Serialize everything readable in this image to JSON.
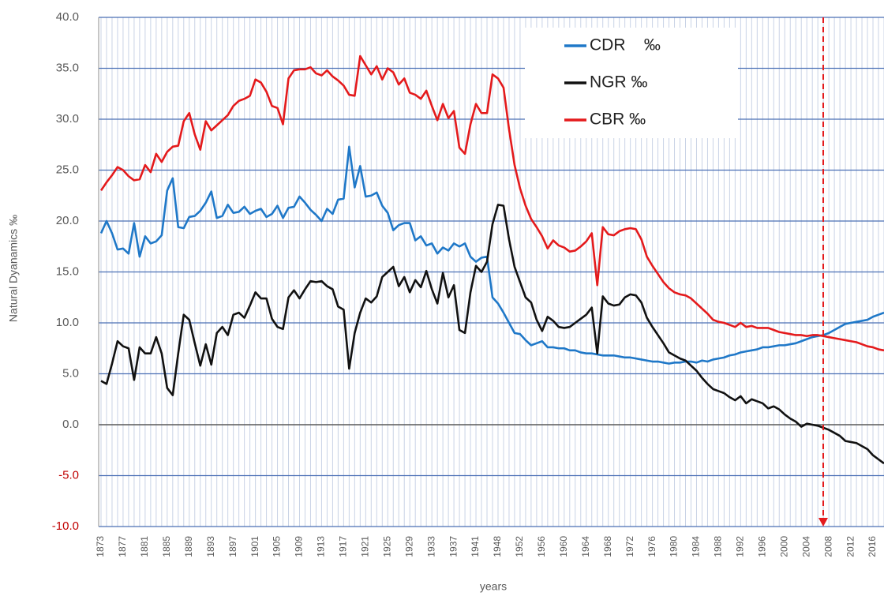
{
  "chart_data": {
    "type": "line",
    "y_label": "Natural Dyanamics ‰",
    "x_label": "years",
    "categories": [
      "1873",
      null,
      null,
      null,
      "1877",
      null,
      null,
      null,
      "1881",
      null,
      null,
      null,
      "1885",
      null,
      null,
      null,
      "1889",
      null,
      null,
      null,
      "1893",
      null,
      null,
      null,
      "1897",
      null,
      null,
      null,
      "1901",
      null,
      null,
      null,
      "1905",
      null,
      null,
      null,
      "1909",
      null,
      null,
      null,
      "1913",
      null,
      null,
      null,
      "1917",
      null,
      null,
      null,
      "1921",
      null,
      null,
      null,
      "1925",
      null,
      null,
      null,
      "1929",
      null,
      null,
      null,
      "1933",
      null,
      null,
      null,
      "1937",
      null,
      null,
      null,
      "1941",
      null,
      null,
      null,
      "1948",
      null,
      null,
      null,
      "1952",
      null,
      null,
      null,
      "1956",
      null,
      null,
      null,
      "1960",
      null,
      null,
      null,
      "1964",
      null,
      null,
      null,
      "1968",
      null,
      null,
      null,
      "1972",
      null,
      null,
      null,
      "1976",
      null,
      null,
      null,
      "1980",
      null,
      null,
      null,
      "1984",
      null,
      null,
      null,
      "1988",
      null,
      null,
      null,
      "1992",
      null,
      null,
      null,
      "1996",
      null,
      null,
      null,
      "2000",
      null,
      null,
      null,
      "2004",
      null,
      null,
      null,
      "2008",
      null,
      null,
      null,
      "2012",
      null,
      null,
      null,
      "2016",
      null,
      null
    ],
    "series": [
      {
        "name": "CDR    ‰",
        "color": "#1f78c8",
        "values": [
          18.8,
          20.0,
          18.8,
          17.2,
          17.3,
          16.8,
          19.8,
          16.5,
          18.5,
          17.8,
          18.0,
          18.6,
          23.0,
          24.2,
          19.4,
          19.3,
          20.4,
          20.5,
          21.0,
          21.8,
          22.9,
          20.3,
          20.5,
          21.6,
          20.8,
          20.9,
          21.4,
          20.7,
          21.0,
          21.2,
          20.4,
          20.7,
          21.5,
          20.3,
          21.3,
          21.4,
          22.4,
          21.8,
          21.1,
          20.6,
          20.0,
          21.2,
          20.7,
          22.1,
          22.2,
          27.3,
          23.3,
          25.4,
          22.4,
          22.5,
          22.8,
          21.5,
          20.8,
          19.1,
          19.6,
          19.8,
          19.8,
          18.1,
          18.5,
          17.6,
          17.8,
          16.8,
          17.4,
          17.1,
          17.8,
          17.5,
          17.8,
          16.5,
          16.0,
          16.4,
          16.5,
          12.5,
          11.9,
          11.0,
          10.0,
          9.0,
          8.9,
          8.3,
          7.8,
          8.0,
          8.2,
          7.6,
          7.6,
          7.5,
          7.5,
          7.3,
          7.3,
          7.1,
          7.0,
          7.0,
          6.9,
          6.8,
          6.8,
          6.8,
          6.7,
          6.6,
          6.6,
          6.5,
          6.4,
          6.3,
          6.2,
          6.2,
          6.1,
          6.0,
          6.1,
          6.1,
          6.2,
          6.2,
          6.1,
          6.3,
          6.2,
          6.4,
          6.5,
          6.6,
          6.8,
          6.9,
          7.1,
          7.2,
          7.3,
          7.4,
          7.6,
          7.6,
          7.7,
          7.8,
          7.8,
          7.9,
          8.0,
          8.2,
          8.4,
          8.6,
          8.7,
          8.8,
          9.0,
          9.3,
          9.6,
          9.9,
          10.0,
          10.1,
          10.2,
          10.3,
          10.6,
          10.8,
          11.0
        ]
      },
      {
        "name": "NGR ‰",
        "color": "#111111",
        "values": [
          4.3,
          4.0,
          6.0,
          8.2,
          7.7,
          7.5,
          4.4,
          7.6,
          7.0,
          7.0,
          8.6,
          7.0,
          3.6,
          2.9,
          7.0,
          10.8,
          10.3,
          8.0,
          5.8,
          7.9,
          5.9,
          9.0,
          9.6,
          8.8,
          10.8,
          11.0,
          10.5,
          11.7,
          13.0,
          12.4,
          12.4,
          10.4,
          9.6,
          9.4,
          12.5,
          13.2,
          12.4,
          13.3,
          14.1,
          14.0,
          14.1,
          13.6,
          13.3,
          11.6,
          11.3,
          5.5,
          9.0,
          11.0,
          12.4,
          12.0,
          12.6,
          14.5,
          15.0,
          15.5,
          13.6,
          14.5,
          13.0,
          14.2,
          13.5,
          15.1,
          13.3,
          11.9,
          14.9,
          12.5,
          13.7,
          9.3,
          9.0,
          13.0,
          15.6,
          15.0,
          16.0,
          19.7,
          21.6,
          21.5,
          18.2,
          15.5,
          14.0,
          12.5,
          12.0,
          10.3,
          9.2,
          10.6,
          10.2,
          9.6,
          9.5,
          9.6,
          10.0,
          10.4,
          10.8,
          11.5,
          7.0,
          12.6,
          11.9,
          11.7,
          11.8,
          12.5,
          12.8,
          12.7,
          12.0,
          10.5,
          9.6,
          8.8,
          8.0,
          7.1,
          6.8,
          6.5,
          6.3,
          5.8,
          5.3,
          4.6,
          4.0,
          3.5,
          3.3,
          3.1,
          2.7,
          2.4,
          2.8,
          2.1,
          2.5,
          2.3,
          2.1,
          1.6,
          1.8,
          1.5,
          1.0,
          0.6,
          0.3,
          -0.2,
          0.1,
          0.0,
          -0.1,
          -0.3,
          -0.5,
          -0.8,
          -1.1,
          -1.6,
          -1.7,
          -1.8,
          -2.1,
          -2.4,
          -3.0,
          -3.4,
          -3.8
        ]
      },
      {
        "name": "CBR ‰",
        "color": "#e41a1c",
        "values": [
          23.0,
          23.8,
          24.5,
          25.3,
          25.0,
          24.4,
          24.0,
          24.1,
          25.5,
          24.8,
          26.6,
          25.8,
          26.8,
          27.3,
          27.4,
          29.8,
          30.6,
          28.5,
          27.0,
          29.8,
          28.9,
          29.4,
          29.9,
          30.4,
          31.3,
          31.8,
          32.0,
          32.3,
          33.9,
          33.6,
          32.7,
          31.3,
          31.1,
          29.5,
          34.0,
          34.8,
          34.9,
          34.9,
          35.1,
          34.5,
          34.3,
          34.8,
          34.2,
          33.8,
          33.3,
          32.4,
          32.3,
          36.2,
          35.3,
          34.4,
          35.2,
          33.9,
          35.0,
          34.6,
          33.4,
          34.0,
          32.6,
          32.4,
          32.0,
          32.8,
          31.3,
          29.9,
          31.5,
          30.1,
          30.8,
          27.2,
          26.6,
          29.5,
          31.5,
          30.6,
          30.6,
          34.4,
          34.0,
          33.1,
          29.0,
          25.5,
          23.2,
          21.5,
          20.2,
          19.4,
          18.5,
          17.3,
          18.1,
          17.6,
          17.4,
          17.0,
          17.1,
          17.5,
          18.0,
          18.8,
          13.7,
          19.4,
          18.7,
          18.6,
          19.0,
          19.2,
          19.3,
          19.2,
          18.2,
          16.5,
          15.6,
          14.8,
          14.0,
          13.4,
          13.0,
          12.8,
          12.7,
          12.4,
          11.9,
          11.4,
          10.9,
          10.3,
          10.1,
          10.0,
          9.8,
          9.6,
          10.0,
          9.6,
          9.7,
          9.5,
          9.5,
          9.5,
          9.3,
          9.1,
          9.0,
          8.9,
          8.8,
          8.8,
          8.7,
          8.8,
          8.8,
          8.7,
          8.6,
          8.5,
          8.4,
          8.3,
          8.2,
          8.1,
          7.9,
          7.7,
          7.6,
          7.4,
          7.3
        ]
      }
    ],
    "ylim": [
      -10,
      40
    ],
    "yticks": [
      {
        "value": -10,
        "label": "-10.0"
      },
      {
        "value": -5,
        "label": "-5.0"
      },
      {
        "value": 0,
        "label": "0.0"
      },
      {
        "value": 5,
        "label": "5.0"
      },
      {
        "value": 10,
        "label": "10.0"
      },
      {
        "value": 15,
        "label": "15.0"
      },
      {
        "value": 20,
        "label": "20.0"
      },
      {
        "value": 25,
        "label": "25.0"
      },
      {
        "value": 30,
        "label": "30.0"
      },
      {
        "value": 35,
        "label": "35.0"
      },
      {
        "value": 40,
        "label": "40.0"
      }
    ],
    "negative_tick_color": "#c00000",
    "grid": true,
    "legend": "upper right"
  }
}
